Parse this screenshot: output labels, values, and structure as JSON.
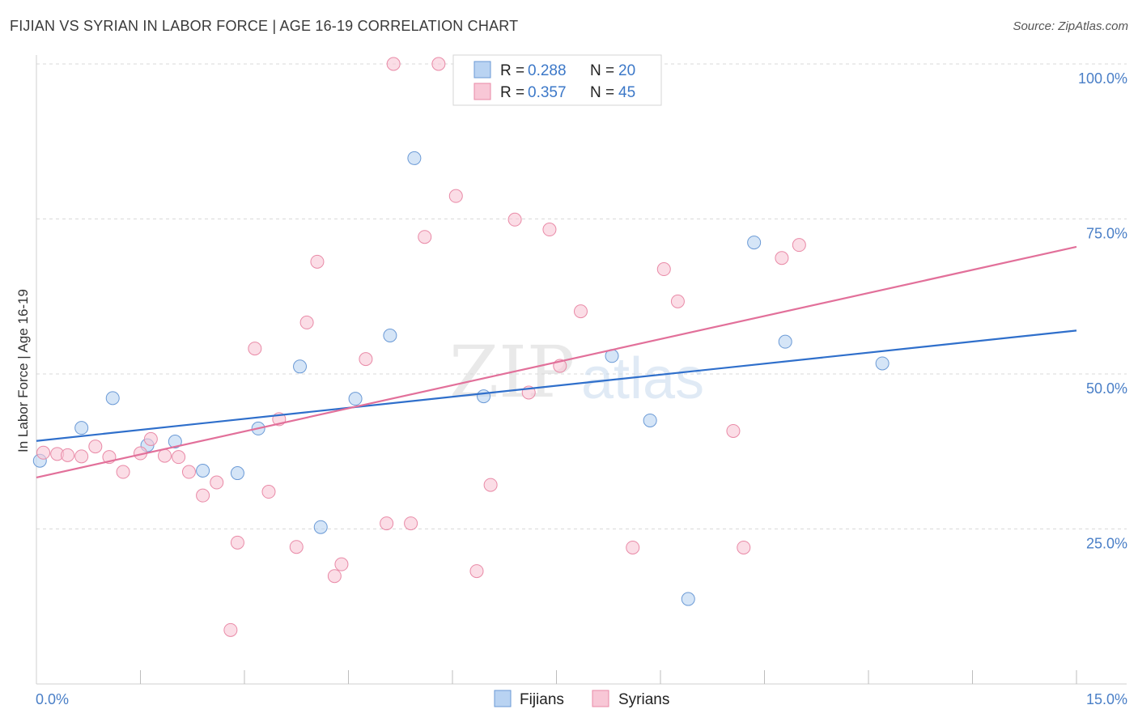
{
  "title": "FIJIAN VS SYRIAN IN LABOR FORCE | AGE 16-19 CORRELATION CHART",
  "source": "Source: ZipAtlas.com",
  "colors": {
    "fijians_fill": "#b9d3f2",
    "fijians_stroke": "#6b9ad6",
    "fijians_line": "#2f6fcb",
    "syrians_fill": "#f8c7d6",
    "syrians_stroke": "#e98aa7",
    "syrians_line": "#e2709a",
    "tick_label": "#4a7fc7",
    "grid": "#d9d9d9"
  },
  "legend": {
    "items": [
      {
        "r_label": "R =",
        "r_value": "0.288",
        "n_label": "N =",
        "n_value": "20"
      },
      {
        "r_label": "R =",
        "r_value": "0.357",
        "n_label": "N =",
        "n_value": "45"
      }
    ]
  },
  "bottom_legend": {
    "fijians": "Fijians",
    "syrians": "Syrians"
  },
  "watermark": {
    "zip": "ZIP",
    "atlas": "atlas"
  },
  "chart_data": {
    "type": "scatter",
    "title": "FIJIAN VS SYRIAN IN LABOR FORCE | AGE 16-19 CORRELATION CHART",
    "xlabel": "",
    "ylabel": "In Labor Force | Age 16-19",
    "xlim": [
      0,
      15
    ],
    "ylim": [
      0,
      100
    ],
    "x_tick_labels": [
      "0.0%",
      "15.0%"
    ],
    "y_ticks": [
      25,
      50,
      75,
      100
    ],
    "y_tick_labels": [
      "25.0%",
      "50.0%",
      "75.0%",
      "100.0%"
    ],
    "grid": true,
    "series": [
      {
        "name": "Fijians",
        "r": 0.288,
        "n": 20,
        "trend": {
          "x0": 0,
          "y0": 39.2,
          "x1": 15,
          "y1": 57.0
        },
        "points": [
          [
            0.05,
            36.0
          ],
          [
            0.65,
            41.3
          ],
          [
            1.1,
            46.1
          ],
          [
            1.6,
            38.5
          ],
          [
            2.0,
            39.1
          ],
          [
            2.4,
            34.4
          ],
          [
            2.9,
            34.0
          ],
          [
            3.2,
            41.2
          ],
          [
            3.8,
            51.2
          ],
          [
            4.1,
            25.3
          ],
          [
            4.6,
            46.0
          ],
          [
            5.1,
            56.2
          ],
          [
            5.45,
            84.8
          ],
          [
            6.45,
            46.4
          ],
          [
            8.3,
            52.9
          ],
          [
            8.85,
            42.5
          ],
          [
            9.4,
            13.7
          ],
          [
            10.35,
            71.2
          ],
          [
            10.8,
            55.2
          ],
          [
            12.2,
            51.7
          ]
        ]
      },
      {
        "name": "Syrians",
        "r": 0.357,
        "n": 45,
        "trend": {
          "x0": 0,
          "y0": 33.3,
          "x1": 15,
          "y1": 70.5
        },
        "points": [
          [
            0.1,
            37.3
          ],
          [
            0.3,
            37.1
          ],
          [
            0.45,
            36.9
          ],
          [
            0.65,
            36.7
          ],
          [
            0.85,
            38.3
          ],
          [
            1.05,
            36.6
          ],
          [
            1.25,
            34.2
          ],
          [
            1.5,
            37.2
          ],
          [
            1.65,
            39.5
          ],
          [
            1.85,
            36.8
          ],
          [
            2.05,
            36.6
          ],
          [
            2.2,
            34.2
          ],
          [
            2.4,
            30.4
          ],
          [
            2.6,
            32.5
          ],
          [
            2.8,
            8.7
          ],
          [
            2.9,
            22.8
          ],
          [
            3.15,
            54.1
          ],
          [
            3.35,
            31.0
          ],
          [
            3.5,
            42.7
          ],
          [
            3.75,
            22.1
          ],
          [
            3.9,
            58.3
          ],
          [
            4.05,
            68.1
          ],
          [
            4.3,
            17.4
          ],
          [
            4.4,
            19.3
          ],
          [
            4.75,
            52.4
          ],
          [
            5.05,
            25.9
          ],
          [
            5.15,
            100.0
          ],
          [
            5.4,
            25.9
          ],
          [
            5.6,
            72.1
          ],
          [
            5.8,
            100.0
          ],
          [
            6.05,
            78.7
          ],
          [
            6.35,
            18.2
          ],
          [
            6.55,
            32.1
          ],
          [
            6.9,
            74.9
          ],
          [
            7.1,
            47.0
          ],
          [
            7.4,
            73.3
          ],
          [
            7.55,
            51.3
          ],
          [
            7.85,
            60.1
          ],
          [
            8.6,
            22.0
          ],
          [
            9.05,
            66.9
          ],
          [
            9.25,
            61.7
          ],
          [
            10.05,
            40.8
          ],
          [
            10.2,
            22.0
          ],
          [
            10.75,
            68.7
          ],
          [
            11.0,
            70.8
          ]
        ]
      }
    ]
  }
}
